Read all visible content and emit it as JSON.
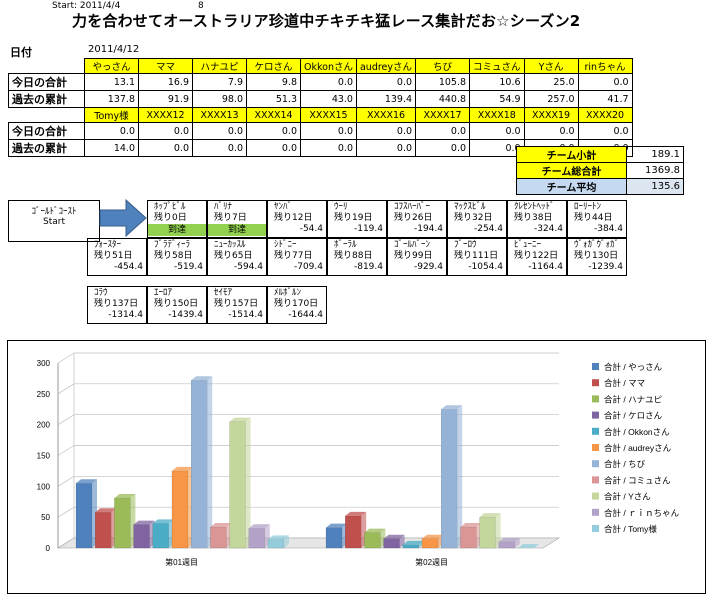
{
  "header": {
    "start_label": "Start: 2011/4/4",
    "number": "8",
    "title": "力を合わせてオーストラリア珍道中チキチキ猛レース集計だお☆シーズン2",
    "date_label": "日付",
    "date_value": "2011/4/12"
  },
  "top_table": {
    "members": [
      "やっさん",
      "ママ",
      "ハナユピ",
      "ケロさん",
      "Okkonさん",
      "audreyさん",
      "ちび",
      "コミュさん",
      "Yさん",
      "rinちゃん"
    ],
    "row1_label": "今日の合計",
    "row1": [
      "13.1",
      "16.9",
      "7.9",
      "9.8",
      "0.0",
      "0.0",
      "105.8",
      "10.6",
      "25.0",
      "0.0"
    ],
    "row2_label": "過去の累計",
    "row2": [
      "137.8",
      "91.9",
      "98.0",
      "51.3",
      "43.0",
      "139.4",
      "440.8",
      "54.9",
      "257.0",
      "41.7"
    ],
    "members2": [
      "Tomy様",
      "XXXX12",
      "XXXX13",
      "XXXX14",
      "XXXX15",
      "XXXX16",
      "XXXX17",
      "XXXX18",
      "XXXX19",
      "XXXX20"
    ],
    "row3_label": "今日の合計",
    "row3": [
      "0.0",
      "0.0",
      "0.0",
      "0.0",
      "0.0",
      "0.0",
      "0.0",
      "0.0",
      "0.0",
      "0.0"
    ],
    "row4_label": "過去の累計",
    "row4": [
      "14.0",
      "0.0",
      "0.0",
      "0.0",
      "0.0",
      "0.0",
      "0.0",
      "0.0",
      "0.0",
      "0.0"
    ]
  },
  "summary": {
    "sub_label": "チーム小計",
    "sub_value": "189.1",
    "total_label": "チーム総合計",
    "total_value": "1369.8",
    "avg_label": "チーム平均",
    "avg_value": "135.6"
  },
  "route": {
    "start_name": "ｺﾞｰﾙﾄﾞｺｰｽﾄ",
    "start_sub": "Start",
    "arrived_label": "到達",
    "row1": [
      {
        "name": "ﾎｯﾌﾟﾋﾞﾙ",
        "days": "残り0日",
        "val": "",
        "arrived": true
      },
      {
        "name": "ﾊﾞﾘﾅ",
        "days": "残り7日",
        "val": "",
        "arrived": true
      },
      {
        "name": "ﾔﾝﾊﾞ",
        "days": "残り12日",
        "val": "-54.4",
        "arrived": false
      },
      {
        "name": "ｳｰﾘ",
        "days": "残り19日",
        "val": "-119.4",
        "arrived": false
      },
      {
        "name": "ｺﾌｽﾊｰﾊﾞｰ",
        "days": "残り26日",
        "val": "-194.4",
        "arrived": false
      },
      {
        "name": "ﾏｯｸｽﾋﾞﾙ",
        "days": "残り32日",
        "val": "-254.4",
        "arrived": false
      },
      {
        "name": "ｸﾚｾﾝﾄﾍｯﾄﾞ",
        "days": "残り38日",
        "val": "-324.4",
        "arrived": false
      },
      {
        "name": "ﾛｰﾘｰﾄﾝ",
        "days": "残り44日",
        "val": "-384.4",
        "arrived": false
      }
    ],
    "row2": [
      {
        "name": "ﾌｫｰｽﾀｰ",
        "days": "残り51日",
        "val": "-454.4"
      },
      {
        "name": "ﾌﾞﾗﾃﾞｨｰﾗ",
        "days": "残り58日",
        "val": "-519.4"
      },
      {
        "name": "ﾆｭｰｶｯｽﾙ",
        "days": "残り65日",
        "val": "-594.4"
      },
      {
        "name": "ｼﾄﾞﾆｰ",
        "days": "残り77日",
        "val": "-709.4"
      },
      {
        "name": "ﾎﾞｰﾗﾙ",
        "days": "残り88日",
        "val": "-819.4"
      },
      {
        "name": "ｺﾞｰﾙﾊﾞｰﾝ",
        "days": "残り99日",
        "val": "-929.4"
      },
      {
        "name": "ﾌﾞｰﾛｳ",
        "days": "残り111日",
        "val": "-1054.4"
      },
      {
        "name": "ﾋﾞｭｰﾆｰ",
        "days": "残り122日",
        "val": "-1164.4"
      },
      {
        "name": "ｳﾞｫｶﾞｳﾞｫｶﾞ",
        "days": "残り130日",
        "val": "-1239.4"
      }
    ],
    "row3": [
      {
        "name": "ｺﾗｳ",
        "days": "残り137日",
        "val": "-1314.4"
      },
      {
        "name": "ｴｰﾛｱ",
        "days": "残り150日",
        "val": "-1439.4"
      },
      {
        "name": "ｾｲﾓｱ",
        "days": "残り157日",
        "val": "-1514.4"
      },
      {
        "name": "ﾒﾙﾎﾞﾙﾝ",
        "days": "残り170日",
        "val": "-1644.4"
      }
    ]
  },
  "chart_data": {
    "type": "bar",
    "categories": [
      "第01週目",
      "第02週目"
    ],
    "ylim": [
      0,
      300
    ],
    "yticks": [
      "0",
      "50",
      "100",
      "150",
      "200",
      "250",
      "300"
    ],
    "series": [
      {
        "name": "合計 / やっさん",
        "color": "#4f81bd",
        "values": [
          105,
          33
        ]
      },
      {
        "name": "合計 / ママ",
        "color": "#c0504d",
        "values": [
          58,
          52
        ]
      },
      {
        "name": "合計 / ハナユピ",
        "color": "#9bbb59",
        "values": [
          81,
          25
        ]
      },
      {
        "name": "合計 / ケロさん",
        "color": "#8064a2",
        "values": [
          38,
          15
        ]
      },
      {
        "name": "合計 / Okkonさん",
        "color": "#4bacc6",
        "values": [
          40,
          5
        ]
      },
      {
        "name": "合計 / audreyさん",
        "color": "#f79646",
        "values": [
          125,
          15
        ]
      },
      {
        "name": "合計 / ちび",
        "color": "#95b3d7",
        "values": [
          272,
          225
        ]
      },
      {
        "name": "合計 / コミュさん",
        "color": "#d99694",
        "values": [
          34,
          34
        ]
      },
      {
        "name": "合計 / Yさん",
        "color": "#c3d69b",
        "values": [
          205,
          50
        ]
      },
      {
        "name": "合計 / ｒｉｎちゃん",
        "color": "#b2a2c7",
        "values": [
          32,
          10
        ]
      },
      {
        "name": "合計 / Tomy様",
        "color": "#93cddd",
        "values": [
          14,
          0
        ]
      }
    ]
  }
}
